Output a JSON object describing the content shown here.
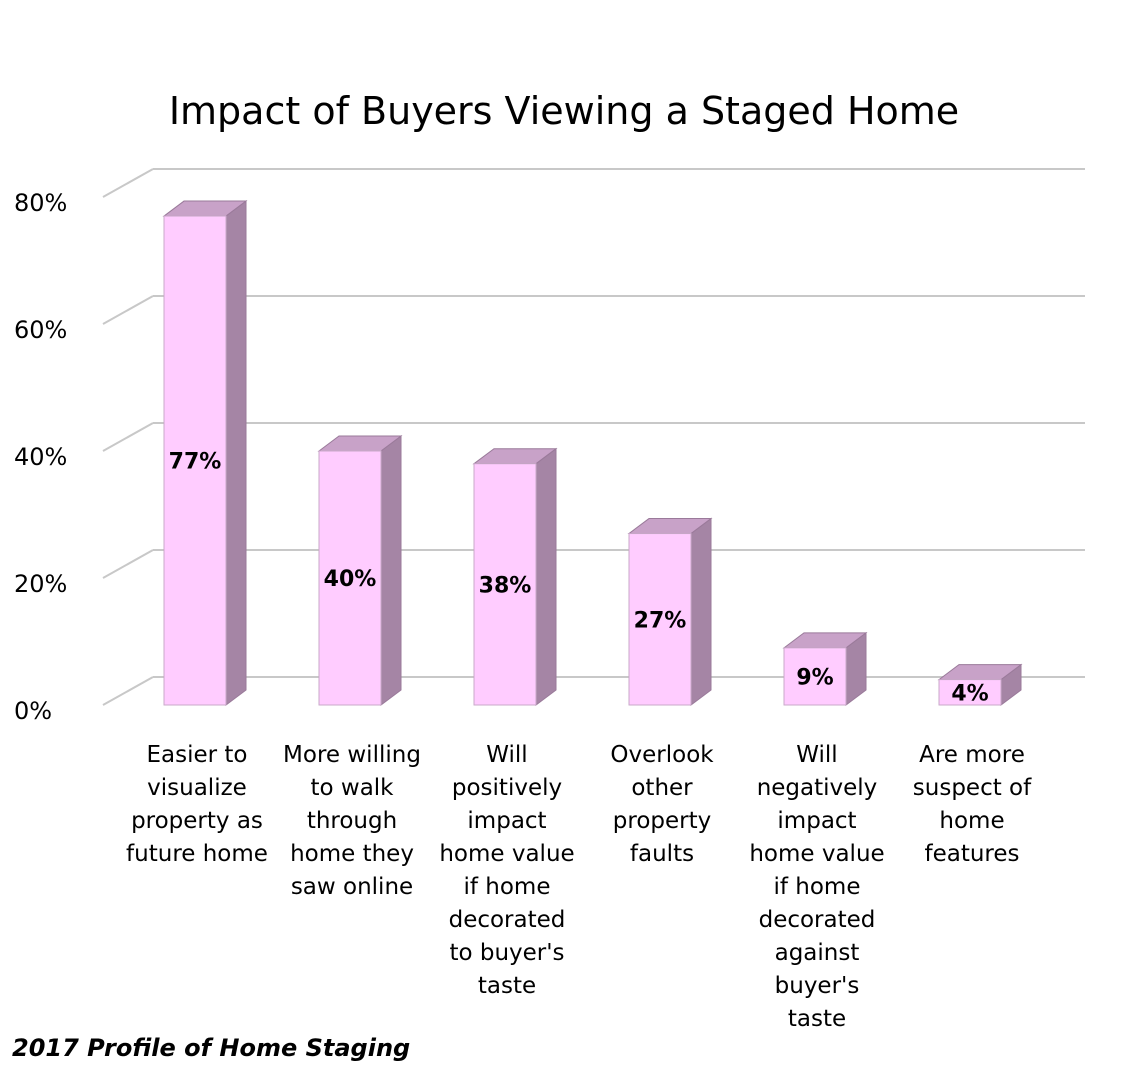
{
  "chart_data": {
    "type": "bar",
    "style": "3d-column",
    "title": "Impact of Buyers Viewing a Staged Home",
    "xlabel": "",
    "ylabel": "",
    "ylim": [
      0,
      80
    ],
    "y_ticks": [
      0,
      20,
      40,
      60,
      80
    ],
    "y_tick_labels": [
      "0%",
      "20%",
      "40%",
      "60%",
      "80%"
    ],
    "grid": true,
    "legend": "none",
    "categories": [
      [
        "Easier to",
        "visualize",
        "property as",
        "future home"
      ],
      [
        "More willing",
        "to walk",
        "through",
        "home they",
        "saw online"
      ],
      [
        "Will",
        "positively",
        "impact",
        "home value",
        "if home",
        "decorated",
        "to buyer's",
        "taste"
      ],
      [
        "Overlook",
        "other",
        "property",
        "faults"
      ],
      [
        "Will",
        "negatively",
        "impact",
        "home value",
        "if home",
        "decorated",
        "against",
        "buyer's",
        "taste"
      ],
      [
        "Are more",
        "suspect of",
        "home",
        "features"
      ]
    ],
    "values": [
      77,
      40,
      38,
      27,
      9,
      4
    ],
    "data_labels": [
      "77%",
      "40%",
      "38%",
      "27%",
      "9%",
      "4%"
    ],
    "colors": {
      "bar_front": "#ffccff",
      "bar_side": "#a585a5",
      "bar_top": "#c8a2c8",
      "grid": "#c8c8c8"
    }
  },
  "source_note": "2017 Profile of Home Staging"
}
